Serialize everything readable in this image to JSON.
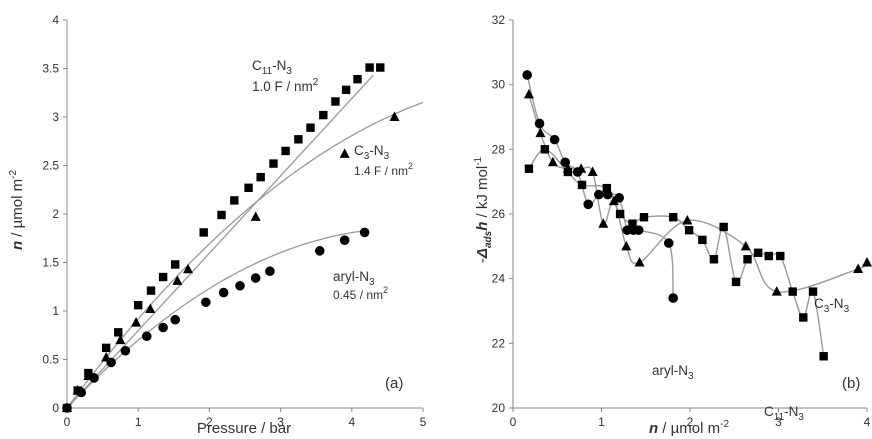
{
  "chart_data": [
    {
      "type": "scatter",
      "panel_label": "(a)",
      "xlabel": "Pressure / bar",
      "ylabel": {
        "symbol": "n",
        "unit": " / µmol m",
        "sup": "-2"
      },
      "xlim": [
        0,
        5
      ],
      "ylim": [
        0,
        4
      ],
      "xticks": [
        "0",
        "1",
        "2",
        "3",
        "4",
        "5"
      ],
      "yticks": [
        "0",
        "0.5",
        "1",
        "1.5",
        "2",
        "2.5",
        "3",
        "3.5",
        "4"
      ],
      "grid": false,
      "series": [
        {
          "marker": "square",
          "label_main": "C",
          "label_sub": "11",
          "label_rest": "-N",
          "label_sub2": "3",
          "label_line2": "1.0 F / nm",
          "label_sup": "2",
          "x": [
            0,
            0.15,
            0.3,
            0.55,
            0.72,
            1.0,
            1.18,
            1.35,
            1.52,
            1.92,
            2.17,
            2.35,
            2.55,
            2.72,
            2.9,
            3.07,
            3.25,
            3.42,
            3.6,
            3.77,
            3.92,
            4.08,
            4.25,
            4.4
          ],
          "y": [
            0,
            0.18,
            0.36,
            0.62,
            0.78,
            1.06,
            1.21,
            1.35,
            1.48,
            1.81,
            1.99,
            2.14,
            2.27,
            2.38,
            2.52,
            2.65,
            2.77,
            2.89,
            3.02,
            3.16,
            3.28,
            3.39,
            3.51,
            3.51
          ]
        },
        {
          "marker": "triangle",
          "label_main": "C",
          "label_sub": "3",
          "label_rest": "-N",
          "label_sub2": "3",
          "label_line2": "1.4 F / nm",
          "label_sup": "2",
          "x": [
            0,
            0.15,
            0.3,
            0.55,
            0.75,
            0.97,
            1.17,
            1.55,
            1.7,
            2.65,
            3.9,
            4.6
          ],
          "y": [
            0,
            0.18,
            0.33,
            0.52,
            0.7,
            0.88,
            1.02,
            1.31,
            1.43,
            1.97,
            2.62,
            3.0
          ]
        },
        {
          "marker": "circle",
          "label_main": "aryl-N",
          "label_sub": "3",
          "label_rest": "",
          "label_sub2": "",
          "label_line2": "0.45 / nm",
          "label_sup": "2",
          "x": [
            0,
            0.2,
            0.38,
            0.62,
            0.82,
            1.12,
            1.35,
            1.52,
            1.95,
            2.2,
            2.43,
            2.65,
            2.85,
            3.55,
            3.9,
            4.18
          ],
          "y": [
            0,
            0.16,
            0.31,
            0.47,
            0.59,
            0.74,
            0.83,
            0.91,
            1.09,
            1.19,
            1.26,
            1.34,
            1.41,
            1.62,
            1.73,
            1.81
          ]
        }
      ]
    },
    {
      "type": "line",
      "panel_label": "(b)",
      "xlabel": {
        "symbol": "n",
        "unit": " / µmol m",
        "sup": "-2"
      },
      "ylabel": {
        "pre": "-",
        "symbol": "Δ",
        "sub": "ads",
        "h": "h",
        "unit": " / kJ mol",
        "sup": "-1"
      },
      "xlim": [
        0,
        4
      ],
      "ylim": [
        20,
        32
      ],
      "xticks": [
        "0",
        "1",
        "2",
        "3",
        "4"
      ],
      "yticks": [
        "20",
        "22",
        "24",
        "26",
        "28",
        "30",
        "32"
      ],
      "grid": false,
      "series": [
        {
          "marker": "circle",
          "label_main": "aryl-N",
          "label_sub": "3",
          "x": [
            0.16,
            0.3,
            0.47,
            0.59,
            0.73,
            0.85,
            0.97,
            1.07,
            1.2,
            1.29,
            1.36,
            1.42,
            1.76,
            1.81
          ],
          "y": [
            30.3,
            28.8,
            28.3,
            27.6,
            27.3,
            26.3,
            26.6,
            26.6,
            26.5,
            25.5,
            25.5,
            25.5,
            25.1,
            23.4
          ]
        },
        {
          "marker": "triangle",
          "label_main": "C",
          "label_sub": "3",
          "label_rest": "-N",
          "label_sub2": "3",
          "x": [
            0.18,
            0.31,
            0.45,
            0.62,
            0.77,
            0.9,
            1.02,
            1.14,
            1.28,
            1.43,
            1.97,
            2.63,
            2.98,
            3.9,
            4.0
          ],
          "y": [
            29.7,
            28.5,
            27.6,
            27.4,
            27.4,
            27.3,
            25.7,
            26.4,
            25.0,
            24.5,
            25.8,
            25.0,
            23.6,
            24.3,
            24.5
          ]
        },
        {
          "marker": "square",
          "label_main": "C",
          "label_sub": "11",
          "label_rest": "-N",
          "label_sub2": "3",
          "x": [
            0.18,
            0.36,
            0.62,
            0.78,
            1.06,
            1.21,
            1.35,
            1.48,
            1.81,
            1.99,
            2.14,
            2.27,
            2.38,
            2.52,
            2.65,
            2.77,
            2.89,
            3.02,
            3.16,
            3.28,
            3.39,
            3.51
          ],
          "y": [
            27.4,
            28.0,
            27.3,
            26.9,
            26.8,
            26.0,
            25.7,
            25.9,
            25.9,
            25.5,
            25.2,
            24.6,
            25.6,
            23.9,
            24.6,
            24.8,
            24.7,
            24.7,
            23.6,
            22.8,
            23.6,
            21.6
          ]
        }
      ]
    }
  ]
}
